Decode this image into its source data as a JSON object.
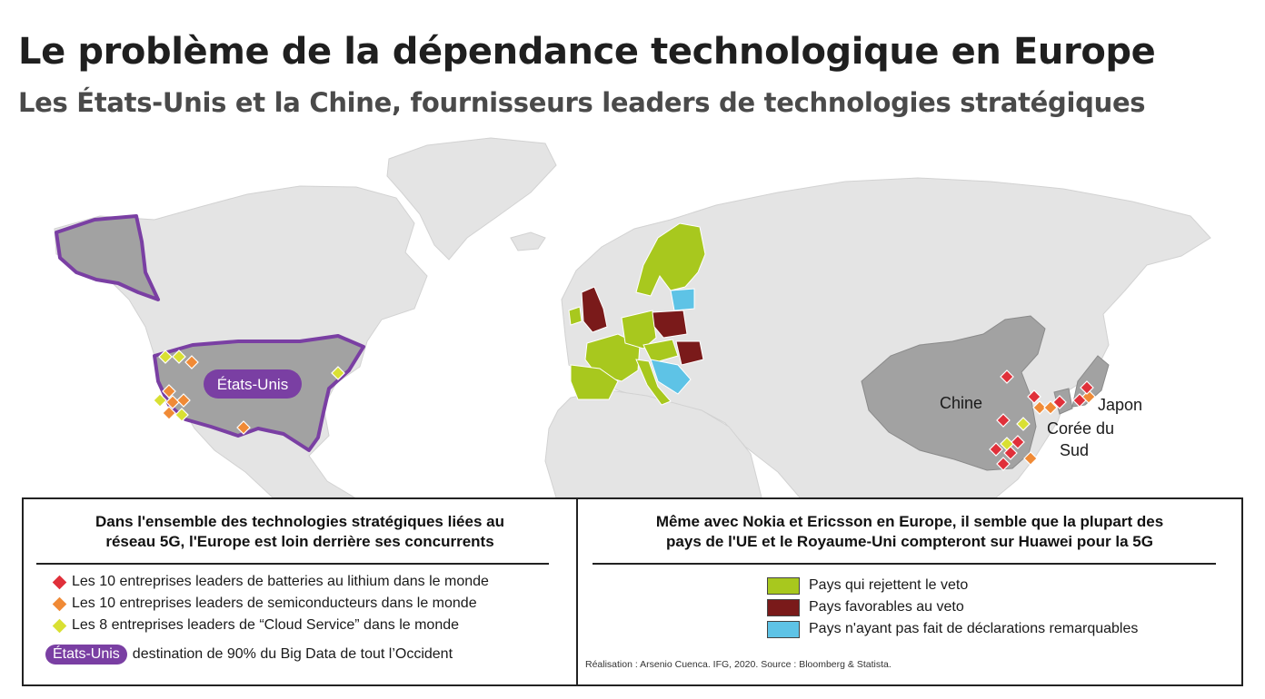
{
  "header": {
    "title": "Le problème de la dépendance technologique en Europe",
    "subtitle": "Les États-Unis et la Chine, fournisseurs leaders de technologies stratégiques"
  },
  "map": {
    "labels": {
      "usa": "États-Unis",
      "china": "Chine",
      "japan": "Japon",
      "korea_line1": "Corée du",
      "korea_line2": "Sud"
    }
  },
  "legend_left": {
    "heading": "Dans l'ensemble des technologies stratégiques liées au\nréseau 5G, l'Europe est loin derrière ses concurrents",
    "items": [
      {
        "marker": "diamond",
        "color": "#e0303a",
        "label": "Les 10 entreprises leaders de batteries au lithium dans le monde"
      },
      {
        "marker": "diamond",
        "color": "#f08a36",
        "label": "Les 10 entreprises leaders de semiconducteurs dans le monde"
      },
      {
        "marker": "diamond",
        "color": "#d9e033",
        "label": "Les 8 entreprises leaders de “Cloud Service” dans le monde"
      }
    ],
    "us_pill": "États-Unis",
    "us_text": "destination de 90% du Big Data de tout l’Occident"
  },
  "legend_right": {
    "heading": "Même avec Nokia et Ericsson en Europe, il semble que la plupart des\npays de l'UE et le Royaume-Uni compteront sur Huawei pour la 5G",
    "items": [
      {
        "color": "#a8c81e",
        "label": "Pays qui rejettent le veto"
      },
      {
        "color": "#7a1a1a",
        "label": "Pays favorables au veto"
      },
      {
        "color": "#5ec3e6",
        "label": "Pays n'ayant pas fait de déclarations remarquables"
      }
    ],
    "credit": "Réalisation : Arsenio Cuenca. IFG, 2020. Source : Bloomberg & Statista."
  },
  "colors": {
    "land": "#e4e4e4",
    "highlight_country": "#a2a2a2",
    "usa_border": "#7a3fa3",
    "veto_reject": "#a8c81e",
    "veto_favor": "#7a1a1a",
    "no_statement": "#5ec3e6",
    "lithium": "#e0303a",
    "semiconductor": "#f08a36",
    "cloud": "#d9e033"
  }
}
